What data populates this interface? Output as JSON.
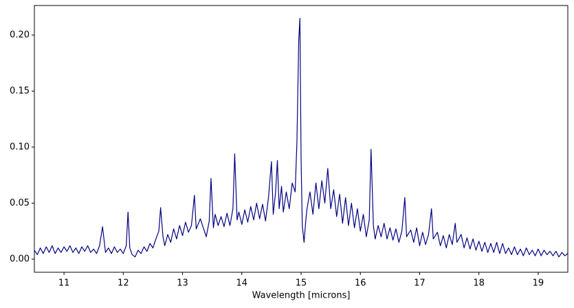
{
  "chart_data": {
    "type": "line",
    "xlabel": "Wavelength [microns]",
    "color": "#000080",
    "x": [
      10.5,
      10.55,
      10.6,
      10.65,
      10.7,
      10.75,
      10.8,
      10.85,
      10.9,
      10.95,
      11.0,
      11.05,
      11.1,
      11.15,
      11.2,
      11.25,
      11.3,
      11.35,
      11.4,
      11.45,
      11.5,
      11.55,
      11.6,
      11.65,
      11.7,
      11.75,
      11.8,
      11.85,
      11.9,
      11.95,
      12.0,
      12.05,
      12.08,
      12.11,
      12.15,
      12.2,
      12.25,
      12.3,
      12.35,
      12.4,
      12.45,
      12.5,
      12.55,
      12.6,
      12.63,
      12.67,
      12.7,
      12.75,
      12.8,
      12.85,
      12.9,
      12.95,
      13.0,
      13.05,
      13.1,
      13.15,
      13.2,
      13.23,
      13.3,
      13.35,
      13.4,
      13.45,
      13.48,
      13.52,
      13.55,
      13.6,
      13.65,
      13.7,
      13.75,
      13.8,
      13.85,
      13.88,
      13.92,
      13.95,
      14.0,
      14.05,
      14.1,
      14.15,
      14.2,
      14.25,
      14.3,
      14.35,
      14.4,
      14.45,
      14.5,
      14.53,
      14.57,
      14.6,
      14.63,
      14.67,
      14.7,
      14.75,
      14.8,
      14.85,
      14.9,
      14.93,
      14.96,
      14.98,
      15.0,
      15.02,
      15.05,
      15.08,
      15.1,
      15.15,
      15.2,
      15.25,
      15.3,
      15.35,
      15.4,
      15.45,
      15.5,
      15.55,
      15.6,
      15.65,
      15.7,
      15.75,
      15.8,
      15.85,
      15.9,
      15.95,
      16.0,
      16.05,
      16.1,
      16.15,
      16.18,
      16.22,
      16.25,
      16.3,
      16.35,
      16.4,
      16.45,
      16.5,
      16.55,
      16.6,
      16.65,
      16.7,
      16.75,
      16.78,
      16.85,
      16.9,
      16.95,
      17.0,
      17.05,
      17.1,
      17.15,
      17.2,
      17.23,
      17.3,
      17.35,
      17.4,
      17.45,
      17.5,
      17.55,
      17.6,
      17.63,
      17.7,
      17.75,
      17.8,
      17.85,
      17.9,
      17.95,
      18.0,
      18.05,
      18.1,
      18.15,
      18.2,
      18.25,
      18.3,
      18.35,
      18.4,
      18.45,
      18.5,
      18.55,
      18.6,
      18.65,
      18.7,
      18.75,
      18.8,
      18.85,
      18.9,
      18.95,
      19.0,
      19.05,
      19.1,
      19.15,
      19.2,
      19.25,
      19.3,
      19.35,
      19.4,
      19.45,
      19.5
    ],
    "values": [
      0.008,
      0.004,
      0.01,
      0.005,
      0.011,
      0.006,
      0.012,
      0.005,
      0.01,
      0.006,
      0.011,
      0.007,
      0.012,
      0.006,
      0.01,
      0.005,
      0.011,
      0.007,
      0.012,
      0.006,
      0.009,
      0.005,
      0.012,
      0.029,
      0.006,
      0.01,
      0.005,
      0.011,
      0.006,
      0.009,
      0.005,
      0.012,
      0.042,
      0.01,
      0.004,
      0.002,
      0.008,
      0.005,
      0.011,
      0.007,
      0.014,
      0.01,
      0.018,
      0.025,
      0.046,
      0.02,
      0.012,
      0.022,
      0.015,
      0.027,
      0.018,
      0.03,
      0.021,
      0.033,
      0.024,
      0.03,
      0.057,
      0.027,
      0.036,
      0.028,
      0.02,
      0.034,
      0.072,
      0.028,
      0.04,
      0.03,
      0.038,
      0.029,
      0.041,
      0.03,
      0.045,
      0.094,
      0.035,
      0.042,
      0.031,
      0.044,
      0.033,
      0.047,
      0.035,
      0.05,
      0.036,
      0.049,
      0.034,
      0.055,
      0.087,
      0.04,
      0.06,
      0.088,
      0.045,
      0.065,
      0.042,
      0.06,
      0.045,
      0.068,
      0.06,
      0.105,
      0.195,
      0.215,
      0.09,
      0.03,
      0.015,
      0.035,
      0.045,
      0.06,
      0.04,
      0.068,
      0.045,
      0.07,
      0.05,
      0.081,
      0.045,
      0.062,
      0.038,
      0.058,
      0.032,
      0.055,
      0.03,
      0.05,
      0.028,
      0.045,
      0.025,
      0.04,
      0.02,
      0.035,
      0.098,
      0.03,
      0.018,
      0.03,
      0.02,
      0.032,
      0.018,
      0.028,
      0.017,
      0.027,
      0.015,
      0.025,
      0.055,
      0.02,
      0.026,
      0.015,
      0.028,
      0.012,
      0.024,
      0.013,
      0.022,
      0.045,
      0.018,
      0.024,
      0.012,
      0.021,
      0.01,
      0.022,
      0.013,
      0.032,
      0.015,
      0.022,
      0.01,
      0.019,
      0.009,
      0.018,
      0.008,
      0.016,
      0.007,
      0.015,
      0.006,
      0.014,
      0.006,
      0.015,
      0.005,
      0.014,
      0.005,
      0.01,
      0.004,
      0.011,
      0.004,
      0.009,
      0.003,
      0.01,
      0.004,
      0.008,
      0.003,
      0.009,
      0.003,
      0.008,
      0.004,
      0.007,
      0.003,
      0.007,
      0.002,
      0.006,
      0.003,
      0.005
    ],
    "xlim": [
      10.5,
      19.5
    ],
    "xticks": [
      11,
      12,
      13,
      14,
      15,
      16,
      17,
      18,
      19
    ],
    "ylim": [
      -0.0117,
      0.2264
    ],
    "yticks": [
      {
        "value": 0,
        "label": "0.00"
      },
      0.05,
      {
        "value": 0.1,
        "label": "0.10"
      },
      0.15,
      {
        "value": 0.2,
        "label": "0.20"
      }
    ]
  }
}
